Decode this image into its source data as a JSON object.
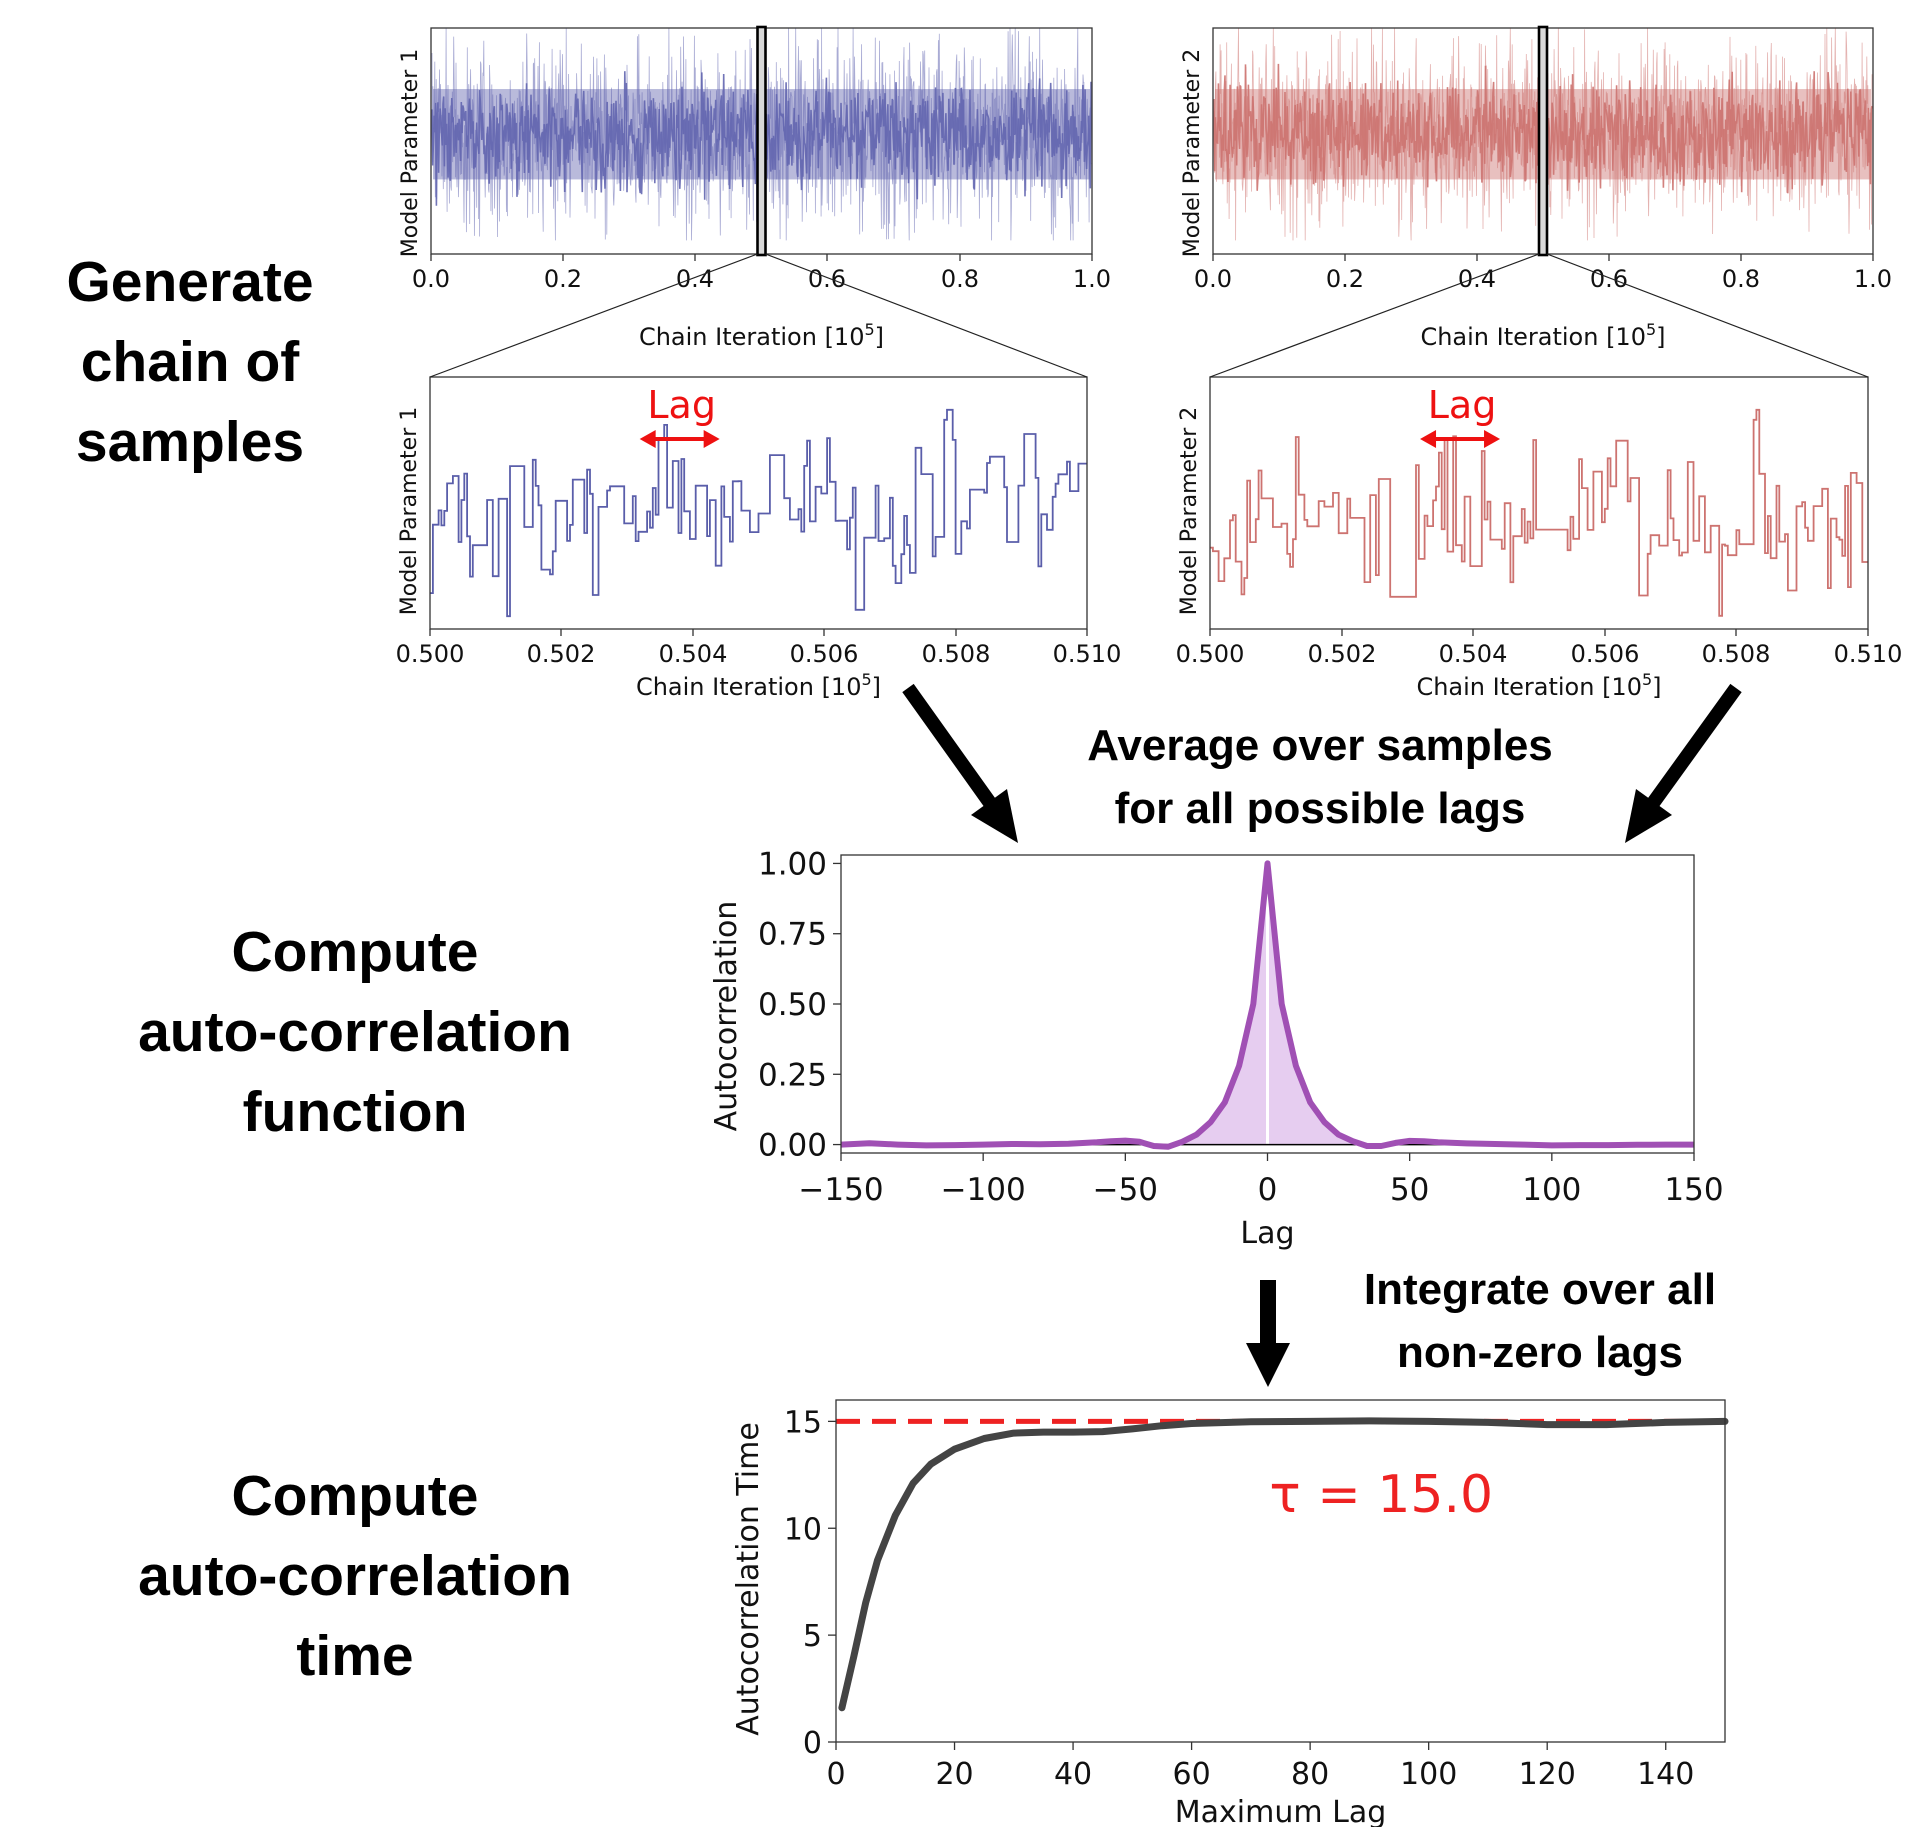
{
  "steps": {
    "generate": [
      "Generate",
      "chain of",
      "samples"
    ],
    "compute_acf": [
      "Compute",
      "auto-correlation",
      "function"
    ],
    "compute_act": [
      "Compute",
      "auto-correlation",
      "time"
    ],
    "average": [
      "Average over samples",
      "for all possible lags"
    ],
    "integrate": [
      "Integrate over all",
      "non-zero lags"
    ]
  },
  "chart_data": [
    {
      "id": "trace-1",
      "type": "line",
      "ylabel": "Model Parameter 1",
      "xlabel": "Chain Iteration [10",
      "xlabel_sup": "5",
      "xlabel_tail": "]",
      "xlim": [
        0.0,
        1.0
      ],
      "xticks": [
        "0.0",
        "0.2",
        "0.4",
        "0.6",
        "0.8",
        "1.0"
      ],
      "color": "#6366b0",
      "highlight_window": [
        0.5,
        0.51
      ]
    },
    {
      "id": "trace-2",
      "type": "line",
      "ylabel": "Model Parameter 2",
      "xlabel": "Chain Iteration [10",
      "xlabel_sup": "5",
      "xlabel_tail": "]",
      "xlim": [
        0.0,
        1.0
      ],
      "xticks": [
        "0.0",
        "0.2",
        "0.4",
        "0.6",
        "0.8",
        "1.0"
      ],
      "color": "#cd7370",
      "highlight_window": [
        0.5,
        0.51
      ]
    },
    {
      "id": "zoom-1",
      "type": "line",
      "ylabel": "Model Parameter 1",
      "xlabel": "Chain Iteration [10",
      "xlabel_sup": "5",
      "xlabel_tail": "]",
      "xlim": [
        0.5,
        0.51
      ],
      "xticks": [
        "0.500",
        "0.502",
        "0.504",
        "0.506",
        "0.508",
        "0.510"
      ],
      "color": "#5a5eaa",
      "annotation": "Lag",
      "annotation_color": "#ee1111"
    },
    {
      "id": "zoom-2",
      "type": "line",
      "ylabel": "Model Parameter 2",
      "xlabel": "Chain Iteration [10",
      "xlabel_sup": "5",
      "xlabel_tail": "]",
      "xlim": [
        0.5,
        0.51
      ],
      "xticks": [
        "0.500",
        "0.502",
        "0.504",
        "0.506",
        "0.508",
        "0.510"
      ],
      "color": "#cd7370",
      "annotation": "Lag",
      "annotation_color": "#ee1111"
    },
    {
      "id": "acf",
      "type": "area",
      "xlabel": "Lag",
      "ylabel": "Autocorrelation",
      "xlim": [
        -150,
        150
      ],
      "ylim": [
        -0.03,
        1.03
      ],
      "xticks": [
        -150,
        -100,
        -50,
        0,
        50,
        100,
        150
      ],
      "xtick_labels": [
        "−150",
        "−100",
        "−50",
        "0",
        "50",
        "100",
        "150"
      ],
      "yticks": [
        0.0,
        0.25,
        0.5,
        0.75,
        1.0
      ],
      "ytick_labels": [
        "0.00",
        "0.25",
        "0.50",
        "0.75",
        "1.00"
      ],
      "line_color": "#a050b4",
      "fill_color": "#e6cdf0",
      "x": [
        -150,
        -140,
        -130,
        -120,
        -110,
        -100,
        -90,
        -80,
        -70,
        -60,
        -55,
        -50,
        -45,
        -40,
        -35,
        -30,
        -25,
        -20,
        -15,
        -10,
        -5,
        0,
        5,
        10,
        15,
        20,
        25,
        30,
        35,
        40,
        45,
        50,
        55,
        60,
        70,
        80,
        90,
        100,
        110,
        120,
        130,
        140,
        150
      ],
      "y": [
        0.0,
        0.005,
        0.0,
        -0.003,
        -0.002,
        0.0,
        0.002,
        0.001,
        0.003,
        0.008,
        0.012,
        0.014,
        0.01,
        -0.005,
        -0.008,
        0.01,
        0.035,
        0.08,
        0.15,
        0.28,
        0.5,
        1.0,
        0.5,
        0.28,
        0.15,
        0.08,
        0.035,
        0.012,
        -0.005,
        -0.005,
        0.006,
        0.013,
        0.012,
        0.008,
        0.004,
        0.002,
        0.0,
        -0.003,
        -0.002,
        -0.002,
        -0.001,
        0.0,
        0.0
      ]
    },
    {
      "id": "act",
      "type": "line",
      "xlabel": "Maximum Lag",
      "ylabel": "Autocorrelation Time",
      "xlim": [
        0,
        150
      ],
      "ylim": [
        0,
        16
      ],
      "xticks": [
        0,
        20,
        40,
        60,
        80,
        100,
        120,
        140
      ],
      "yticks": [
        0,
        5,
        10,
        15
      ],
      "line_color": "#444444",
      "tau_value": 15.0,
      "tau_label": "τ = 15.0",
      "tau_color": "#ee2222",
      "x": [
        1,
        3,
        5,
        7,
        10,
        13,
        16,
        20,
        25,
        30,
        35,
        40,
        45,
        50,
        55,
        60,
        70,
        80,
        90,
        100,
        110,
        120,
        130,
        140,
        150
      ],
      "y": [
        1.6,
        4.0,
        6.5,
        8.5,
        10.6,
        12.1,
        13.0,
        13.7,
        14.2,
        14.45,
        14.5,
        14.5,
        14.52,
        14.65,
        14.8,
        14.9,
        14.98,
        15.0,
        15.02,
        15.0,
        14.95,
        14.85,
        14.85,
        14.95,
        15.0
      ]
    }
  ]
}
